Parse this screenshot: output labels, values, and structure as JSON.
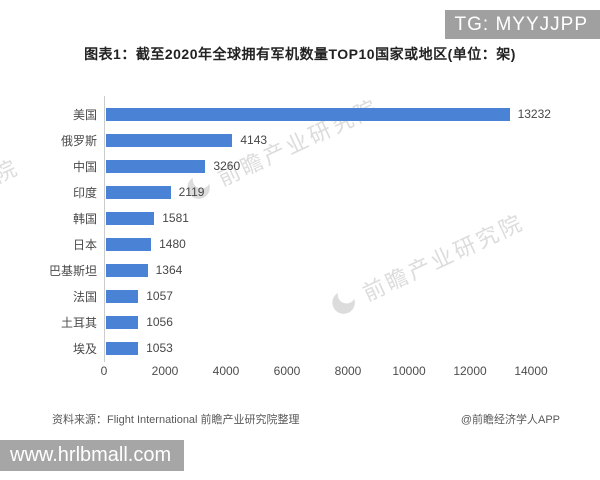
{
  "badges": {
    "tg": "TG: MYYJJPP",
    "website": "www.hrlbmall.com"
  },
  "title": "图表1：截至2020年全球拥有军机数量TOP10国家或地区(单位：架)",
  "watermark": {
    "text": "前瞻产业研究院"
  },
  "footer": {
    "source": "资料来源：Flight International 前瞻产业研究院整理",
    "credit": "@前瞻经济学人APP"
  },
  "chart_data": {
    "type": "bar",
    "orientation": "horizontal",
    "title": "图表1：截至2020年全球拥有军机数量TOP10国家或地区(单位：架)",
    "categories": [
      "美国",
      "俄罗斯",
      "中国",
      "印度",
      "韩国",
      "日本",
      "巴基斯坦",
      "法国",
      "土耳其",
      "埃及"
    ],
    "values": [
      13232,
      4143,
      3260,
      2119,
      1581,
      1480,
      1364,
      1057,
      1056,
      1053
    ],
    "unit": "架",
    "xlabel": "",
    "ylabel": "",
    "xlim": [
      0,
      14000
    ],
    "x_ticks": [
      0,
      2000,
      4000,
      6000,
      8000,
      10000,
      12000,
      14000
    ],
    "bar_color": "#4a82d6",
    "value_labels": true,
    "grid": false,
    "legend": null
  }
}
